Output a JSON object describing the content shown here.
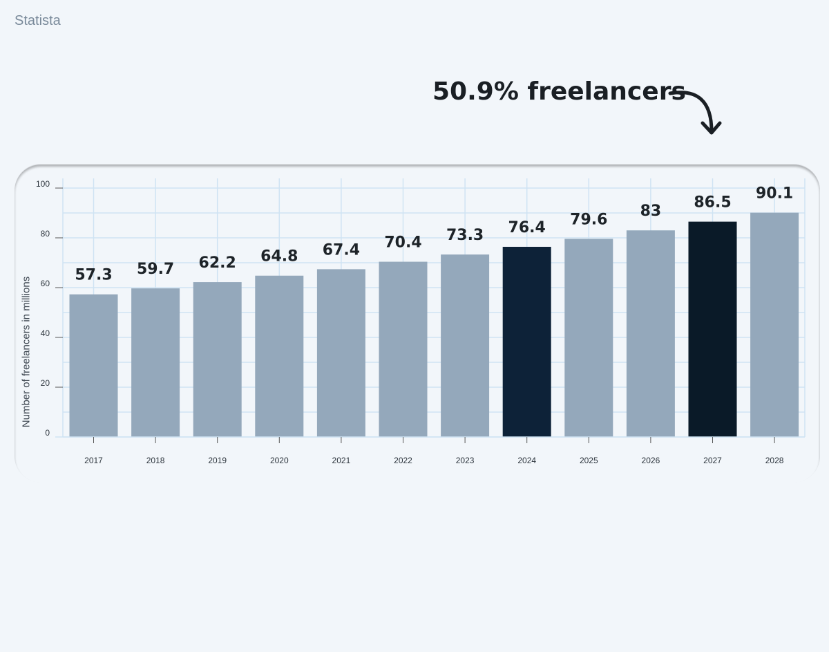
{
  "source": "Statista",
  "annotation": "50.9% freelancers",
  "chart_data": {
    "type": "bar",
    "categories": [
      "2017",
      "2018",
      "2019",
      "2020",
      "2021",
      "2022",
      "2023",
      "2024",
      "2025",
      "2026",
      "2027",
      "2028"
    ],
    "values": [
      57.3,
      59.7,
      62.2,
      64.8,
      67.4,
      70.4,
      73.3,
      76.4,
      79.6,
      83,
      86.5,
      90.1
    ],
    "title": "",
    "xlabel": "",
    "ylabel": "Number of freelancers in millions",
    "ylim": [
      0,
      100
    ],
    "yticks": [
      0,
      20,
      40,
      60,
      80,
      100
    ],
    "grid": true,
    "bar_color": "#94a8bb",
    "highlight_colors": {
      "2024": "#0d2238",
      "2027": "#0a1a28"
    }
  }
}
